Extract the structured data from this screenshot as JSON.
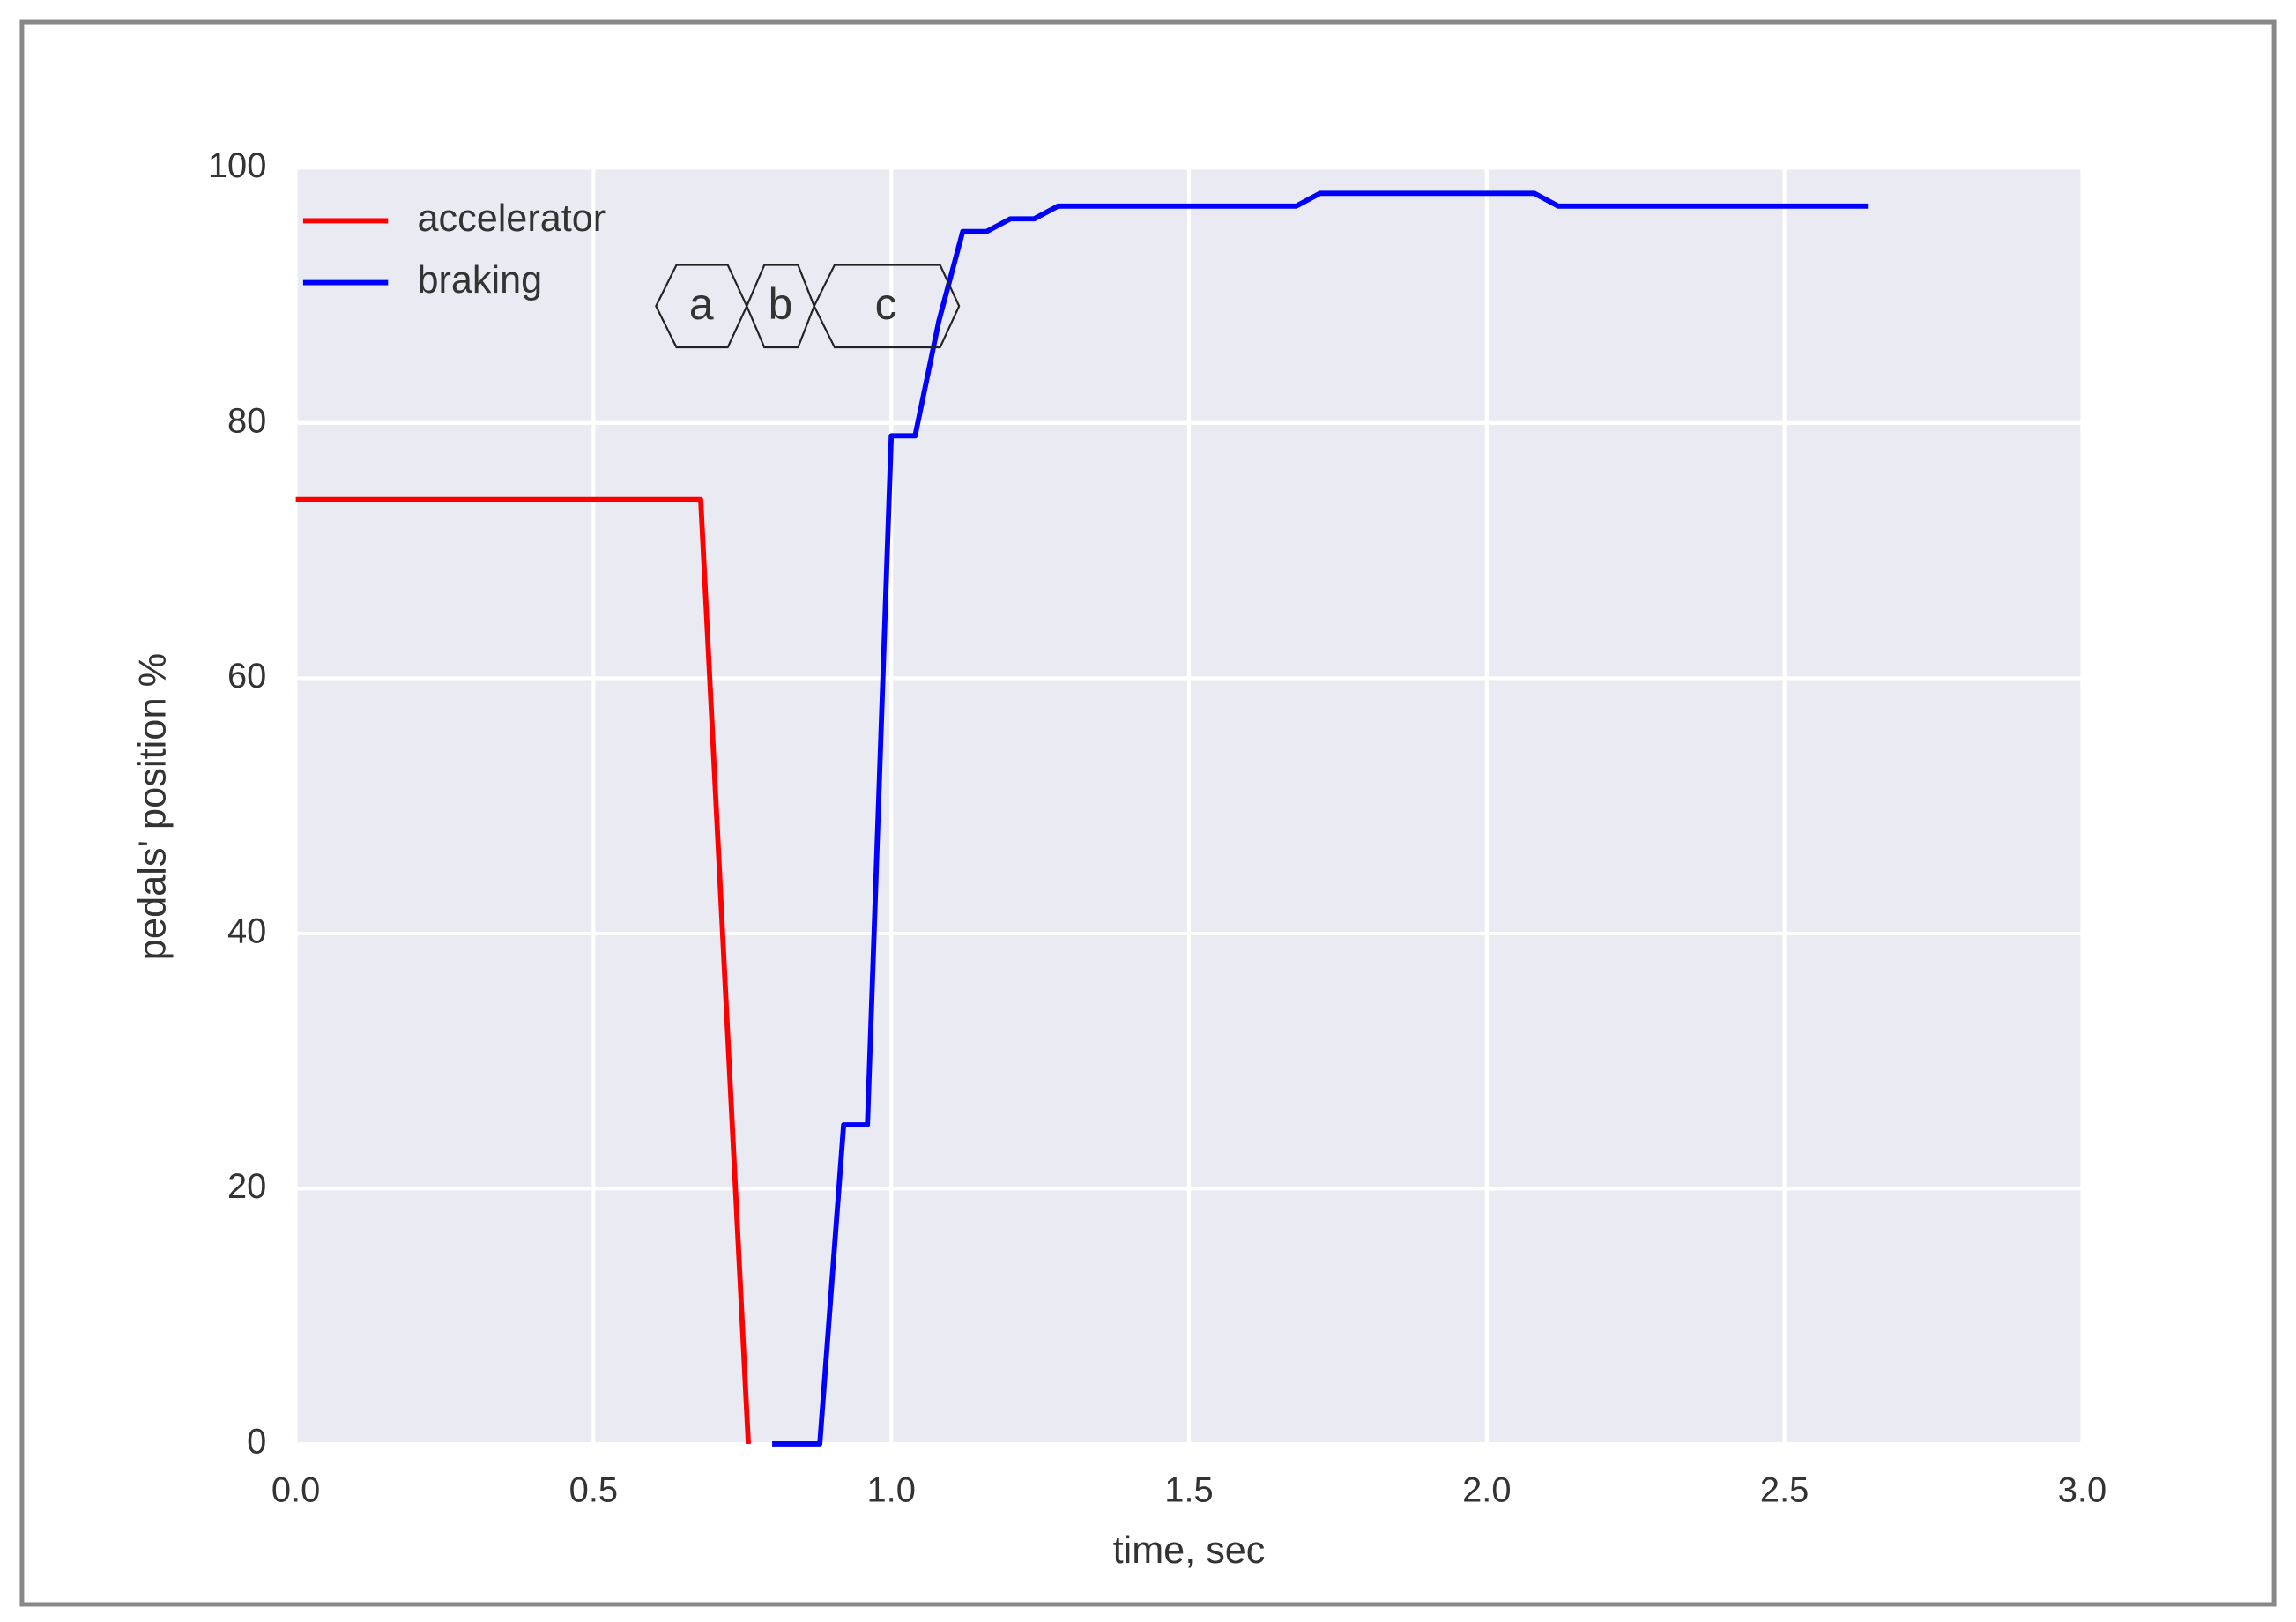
{
  "chart_data": {
    "type": "line",
    "xlabel": "time, sec",
    "ylabel": "pedals' position %",
    "xlim": [
      0,
      3
    ],
    "ylim": [
      0,
      100
    ],
    "xticks": [
      {
        "value": 0,
        "label": "0.0"
      },
      0.5,
      {
        "value": 1,
        "label": "1.0"
      },
      1.5,
      {
        "value": 2,
        "label": "2.0"
      },
      2.5,
      {
        "value": 3,
        "label": "3.0"
      }
    ],
    "yticks": [
      0,
      20,
      40,
      60,
      80,
      100
    ],
    "grid": true,
    "legend": "upper left",
    "series": [
      {
        "name": "accelerator",
        "color": "#ff0000",
        "x": [
          0,
          0.68,
          0.76
        ],
        "values": [
          74,
          74,
          0
        ]
      },
      {
        "name": "braking",
        "color": "#0000ff",
        "x": [
          0.8,
          0.88,
          0.92,
          0.96,
          1.0,
          1.04,
          1.08,
          1.12,
          1.16,
          1.2,
          1.24,
          1.28,
          1.68,
          1.72,
          2.08,
          2.12,
          2.64
        ],
        "values": [
          0,
          0,
          25,
          25,
          79,
          79,
          88,
          95,
          95,
          96,
          96,
          97,
          97,
          98,
          98,
          97,
          97
        ]
      }
    ],
    "annotations": [
      "a",
      "b",
      "c"
    ]
  }
}
